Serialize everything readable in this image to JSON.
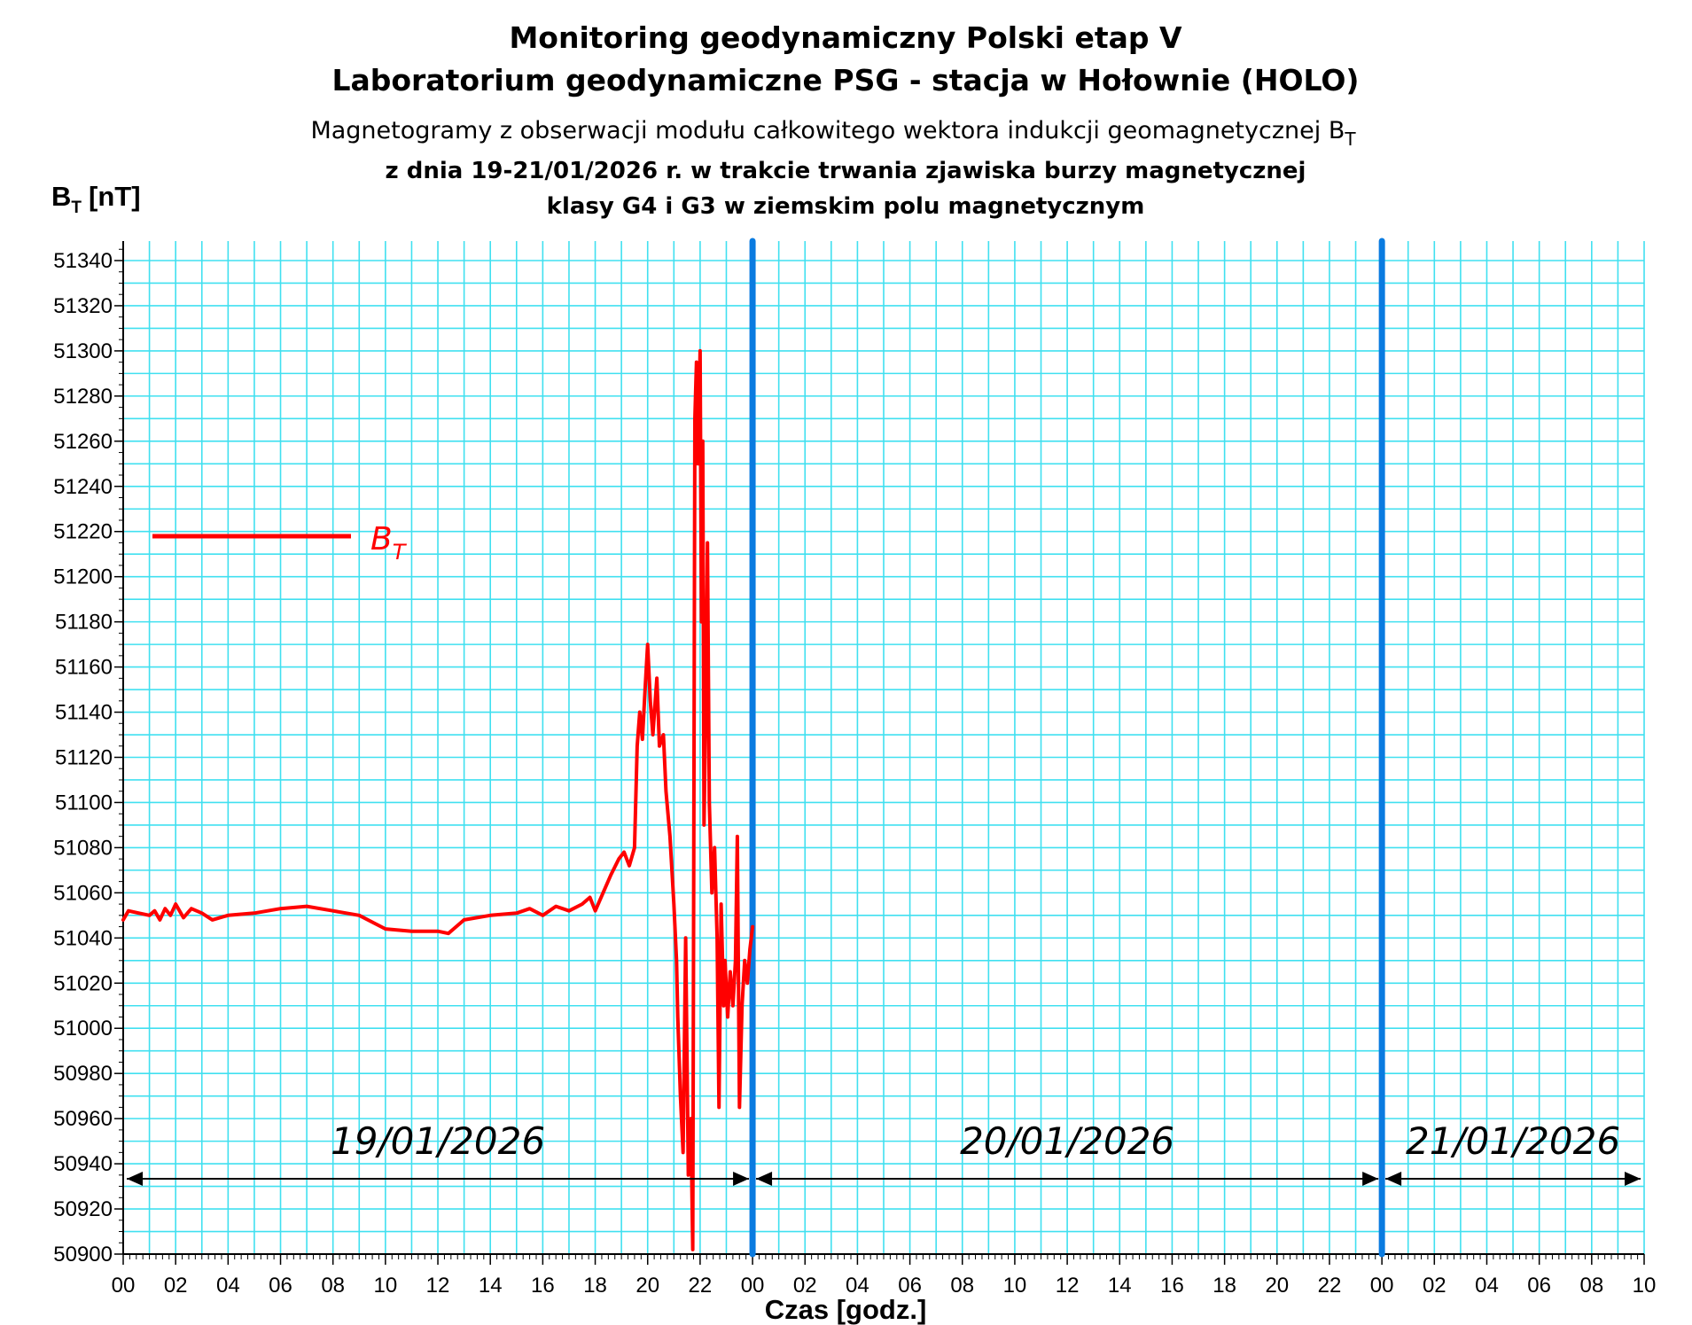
{
  "titles": {
    "line1": "Monitoring geodynamiczny Polski etap V",
    "line2": "Laboratorium geodynamiczne PSG - stacja w Hołownie (HOLO)",
    "line3": "Magnetogramy z obserwacji modułu całkowitego wektora indukcji geomagnetycznej B",
    "line3_sub": "T",
    "line4": "z dnia 19-21/01/2026 r. w trakcie trwania zjawiska burzy magnetycznej",
    "line5": "klasy G4 i G3 w ziemskim polu magnetycznym"
  },
  "colors": {
    "series": "#ff0000",
    "grid": "#40e0f0",
    "day_divider": "#0a7be0",
    "axis": "#000000"
  },
  "chart_data": {
    "type": "line",
    "ylabel": "B",
    "ylabel_sub": "T",
    "ylabel_unit": "[nT]",
    "xlabel": "Czas [godz.]",
    "ylim": [
      50900,
      51350
    ],
    "yticks": [
      "50900",
      "50920",
      "50940",
      "50960",
      "50980",
      "51000",
      "51020",
      "51040",
      "51060",
      "51080",
      "51100",
      "51120",
      "51140",
      "51160",
      "51180",
      "51200",
      "51220",
      "51240",
      "51260",
      "51280",
      "51300",
      "51320",
      "51340"
    ],
    "xlim": [
      0,
      58
    ],
    "xtick_labels": [
      "00",
      "02",
      "04",
      "06",
      "08",
      "10",
      "12",
      "14",
      "16",
      "18",
      "20",
      "22",
      "00",
      "02",
      "04",
      "06",
      "08",
      "10",
      "12",
      "14",
      "16",
      "18",
      "20",
      "22",
      "00",
      "02",
      "04",
      "06",
      "08",
      "10"
    ],
    "grid": true,
    "legend_position": "upper-left",
    "day_dividers_hours": [
      24,
      48
    ],
    "date_ranges": [
      {
        "label": "19/01/2026",
        "from": 0,
        "to": 24
      },
      {
        "label": "20/01/2026",
        "from": 24,
        "to": 48
      },
      {
        "label": "21/01/2026",
        "from": 48,
        "to": 58
      }
    ],
    "series": [
      {
        "name": "B",
        "name_sub": "T",
        "points": [
          [
            0,
            51048
          ],
          [
            0.2,
            51052
          ],
          [
            0.6,
            51051
          ],
          [
            1.0,
            51050
          ],
          [
            1.2,
            51052
          ],
          [
            1.4,
            51048
          ],
          [
            1.6,
            51053
          ],
          [
            1.8,
            51050
          ],
          [
            2.0,
            51055
          ],
          [
            2.3,
            51049
          ],
          [
            2.6,
            51053
          ],
          [
            3.0,
            51051
          ],
          [
            3.4,
            51048
          ],
          [
            4.0,
            51050
          ],
          [
            5.0,
            51051
          ],
          [
            6.0,
            51053
          ],
          [
            7.0,
            51054
          ],
          [
            8.0,
            51052
          ],
          [
            9.0,
            51050
          ],
          [
            9.5,
            51047
          ],
          [
            10.0,
            51044
          ],
          [
            11.0,
            51043
          ],
          [
            12.0,
            51043
          ],
          [
            12.4,
            51042
          ],
          [
            13.0,
            51048
          ],
          [
            14.0,
            51050
          ],
          [
            15.0,
            51051
          ],
          [
            15.5,
            51053
          ],
          [
            16.0,
            51050
          ],
          [
            16.5,
            51054
          ],
          [
            17.0,
            51052
          ],
          [
            17.5,
            51055
          ],
          [
            17.8,
            51058
          ],
          [
            18.0,
            51052
          ],
          [
            18.3,
            51060
          ],
          [
            18.6,
            51068
          ],
          [
            18.9,
            51075
          ],
          [
            19.1,
            51078
          ],
          [
            19.3,
            51072
          ],
          [
            19.5,
            51080
          ],
          [
            19.6,
            51125
          ],
          [
            19.7,
            51140
          ],
          [
            19.8,
            51128
          ],
          [
            19.9,
            51150
          ],
          [
            20.0,
            51170
          ],
          [
            20.1,
            51145
          ],
          [
            20.2,
            51130
          ],
          [
            20.35,
            51155
          ],
          [
            20.45,
            51125
          ],
          [
            20.6,
            51130
          ],
          [
            20.7,
            51105
          ],
          [
            20.85,
            51085
          ],
          [
            21.0,
            51055
          ],
          [
            21.1,
            51030
          ],
          [
            21.15,
            51005
          ],
          [
            21.25,
            50970
          ],
          [
            21.35,
            50945
          ],
          [
            21.45,
            51040
          ],
          [
            21.55,
            50935
          ],
          [
            21.65,
            50960
          ],
          [
            21.72,
            50902
          ],
          [
            21.8,
            51270
          ],
          [
            21.86,
            51295
          ],
          [
            21.92,
            51250
          ],
          [
            22.0,
            51300
          ],
          [
            22.05,
            51180
          ],
          [
            22.1,
            51260
          ],
          [
            22.15,
            51090
          ],
          [
            22.2,
            51130
          ],
          [
            22.28,
            51215
          ],
          [
            22.35,
            51100
          ],
          [
            22.45,
            51060
          ],
          [
            22.55,
            51080
          ],
          [
            22.65,
            51040
          ],
          [
            22.72,
            50965
          ],
          [
            22.8,
            51055
          ],
          [
            22.9,
            51010
          ],
          [
            22.95,
            51030
          ],
          [
            23.05,
            51005
          ],
          [
            23.15,
            51025
          ],
          [
            23.25,
            51010
          ],
          [
            23.35,
            51030
          ],
          [
            23.42,
            51085
          ],
          [
            23.5,
            50965
          ],
          [
            23.6,
            51010
          ],
          [
            23.7,
            51030
          ],
          [
            23.8,
            51020
          ],
          [
            23.9,
            51035
          ],
          [
            24.0,
            51045
          ]
        ]
      }
    ]
  }
}
